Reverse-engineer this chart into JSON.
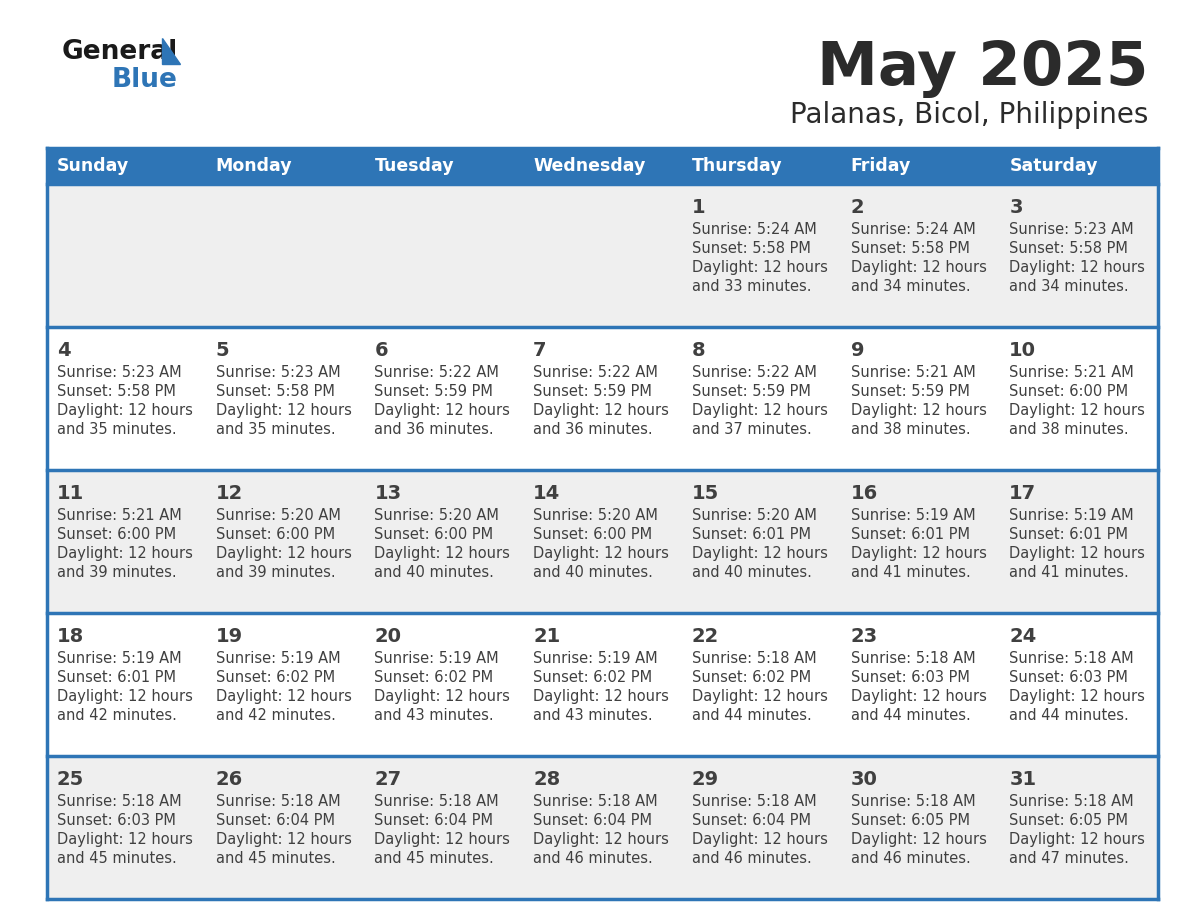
{
  "title": "May 2025",
  "subtitle": "Palanas, Bicol, Philippines",
  "days_of_week": [
    "Sunday",
    "Monday",
    "Tuesday",
    "Wednesday",
    "Thursday",
    "Friday",
    "Saturday"
  ],
  "header_bg": "#2E75B6",
  "header_text": "#FFFFFF",
  "row_bg_odd": "#EFEFEF",
  "row_bg_even": "#FFFFFF",
  "cell_border_color": "#2E75B6",
  "text_color": "#404040",
  "title_color": "#2b2b2b",
  "subtitle_color": "#2b2b2b",
  "logo_general_color": "#1a1a1a",
  "logo_blue_color": "#2E75B6",
  "logo_triangle_color": "#2E75B6",
  "calendar_data": [
    [
      null,
      null,
      null,
      null,
      {
        "day": 1,
        "sunrise": "5:24 AM",
        "sunset": "5:58 PM",
        "daylight": "12 hours and 33 minutes"
      },
      {
        "day": 2,
        "sunrise": "5:24 AM",
        "sunset": "5:58 PM",
        "daylight": "12 hours and 34 minutes"
      },
      {
        "day": 3,
        "sunrise": "5:23 AM",
        "sunset": "5:58 PM",
        "daylight": "12 hours and 34 minutes"
      }
    ],
    [
      {
        "day": 4,
        "sunrise": "5:23 AM",
        "sunset": "5:58 PM",
        "daylight": "12 hours and 35 minutes"
      },
      {
        "day": 5,
        "sunrise": "5:23 AM",
        "sunset": "5:58 PM",
        "daylight": "12 hours and 35 minutes"
      },
      {
        "day": 6,
        "sunrise": "5:22 AM",
        "sunset": "5:59 PM",
        "daylight": "12 hours and 36 minutes"
      },
      {
        "day": 7,
        "sunrise": "5:22 AM",
        "sunset": "5:59 PM",
        "daylight": "12 hours and 36 minutes"
      },
      {
        "day": 8,
        "sunrise": "5:22 AM",
        "sunset": "5:59 PM",
        "daylight": "12 hours and 37 minutes"
      },
      {
        "day": 9,
        "sunrise": "5:21 AM",
        "sunset": "5:59 PM",
        "daylight": "12 hours and 38 minutes"
      },
      {
        "day": 10,
        "sunrise": "5:21 AM",
        "sunset": "6:00 PM",
        "daylight": "12 hours and 38 minutes"
      }
    ],
    [
      {
        "day": 11,
        "sunrise": "5:21 AM",
        "sunset": "6:00 PM",
        "daylight": "12 hours and 39 minutes"
      },
      {
        "day": 12,
        "sunrise": "5:20 AM",
        "sunset": "6:00 PM",
        "daylight": "12 hours and 39 minutes"
      },
      {
        "day": 13,
        "sunrise": "5:20 AM",
        "sunset": "6:00 PM",
        "daylight": "12 hours and 40 minutes"
      },
      {
        "day": 14,
        "sunrise": "5:20 AM",
        "sunset": "6:00 PM",
        "daylight": "12 hours and 40 minutes"
      },
      {
        "day": 15,
        "sunrise": "5:20 AM",
        "sunset": "6:01 PM",
        "daylight": "12 hours and 40 minutes"
      },
      {
        "day": 16,
        "sunrise": "5:19 AM",
        "sunset": "6:01 PM",
        "daylight": "12 hours and 41 minutes"
      },
      {
        "day": 17,
        "sunrise": "5:19 AM",
        "sunset": "6:01 PM",
        "daylight": "12 hours and 41 minutes"
      }
    ],
    [
      {
        "day": 18,
        "sunrise": "5:19 AM",
        "sunset": "6:01 PM",
        "daylight": "12 hours and 42 minutes"
      },
      {
        "day": 19,
        "sunrise": "5:19 AM",
        "sunset": "6:02 PM",
        "daylight": "12 hours and 42 minutes"
      },
      {
        "day": 20,
        "sunrise": "5:19 AM",
        "sunset": "6:02 PM",
        "daylight": "12 hours and 43 minutes"
      },
      {
        "day": 21,
        "sunrise": "5:19 AM",
        "sunset": "6:02 PM",
        "daylight": "12 hours and 43 minutes"
      },
      {
        "day": 22,
        "sunrise": "5:18 AM",
        "sunset": "6:02 PM",
        "daylight": "12 hours and 44 minutes"
      },
      {
        "day": 23,
        "sunrise": "5:18 AM",
        "sunset": "6:03 PM",
        "daylight": "12 hours and 44 minutes"
      },
      {
        "day": 24,
        "sunrise": "5:18 AM",
        "sunset": "6:03 PM",
        "daylight": "12 hours and 44 minutes"
      }
    ],
    [
      {
        "day": 25,
        "sunrise": "5:18 AM",
        "sunset": "6:03 PM",
        "daylight": "12 hours and 45 minutes"
      },
      {
        "day": 26,
        "sunrise": "5:18 AM",
        "sunset": "6:04 PM",
        "daylight": "12 hours and 45 minutes"
      },
      {
        "day": 27,
        "sunrise": "5:18 AM",
        "sunset": "6:04 PM",
        "daylight": "12 hours and 45 minutes"
      },
      {
        "day": 28,
        "sunrise": "5:18 AM",
        "sunset": "6:04 PM",
        "daylight": "12 hours and 46 minutes"
      },
      {
        "day": 29,
        "sunrise": "5:18 AM",
        "sunset": "6:04 PM",
        "daylight": "12 hours and 46 minutes"
      },
      {
        "day": 30,
        "sunrise": "5:18 AM",
        "sunset": "6:05 PM",
        "daylight": "12 hours and 46 minutes"
      },
      {
        "day": 31,
        "sunrise": "5:18 AM",
        "sunset": "6:05 PM",
        "daylight": "12 hours and 47 minutes"
      }
    ]
  ]
}
